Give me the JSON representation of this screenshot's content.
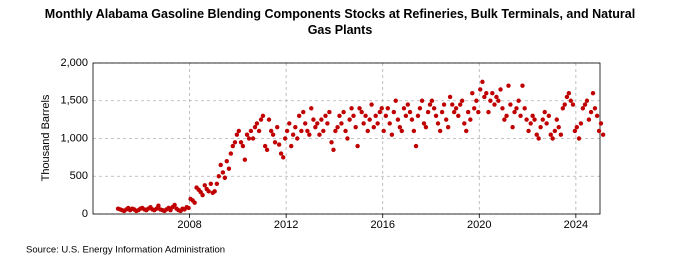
{
  "chart_data": {
    "type": "scatter",
    "title": "Monthly Alabama Gasoline Blending Components Stocks at Refineries, Bulk Terminals, and Natural Gas Plants",
    "y_label": "Thousand Barrels",
    "source": "Source: U.S. Energy Information Administration",
    "color": "#c00000",
    "grid": true,
    "xlim": [
      2004,
      2025
    ],
    "ylim": [
      0,
      2000
    ],
    "xticks": [
      2008,
      2012,
      2016,
      2020,
      2024
    ],
    "yticks": [
      0,
      500,
      {
        "value": 1000,
        "label": "1,000"
      },
      {
        "value": 1500,
        "label": "1,500"
      },
      {
        "value": 2000,
        "label": "2,000"
      }
    ],
    "x": [
      2005.04,
      2005.13,
      2005.21,
      2005.29,
      2005.38,
      2005.46,
      2005.54,
      2005.63,
      2005.71,
      2005.79,
      2005.88,
      2005.96,
      2006.04,
      2006.13,
      2006.21,
      2006.29,
      2006.38,
      2006.46,
      2006.54,
      2006.63,
      2006.71,
      2006.79,
      2006.88,
      2006.96,
      2007.04,
      2007.13,
      2007.21,
      2007.29,
      2007.38,
      2007.46,
      2007.54,
      2007.63,
      2007.71,
      2007.79,
      2007.88,
      2007.96,
      2008.04,
      2008.13,
      2008.21,
      2008.29,
      2008.38,
      2008.46,
      2008.54,
      2008.63,
      2008.71,
      2008.79,
      2008.88,
      2008.96,
      2009.04,
      2009.13,
      2009.21,
      2009.29,
      2009.38,
      2009.46,
      2009.54,
      2009.63,
      2009.71,
      2009.79,
      2009.88,
      2009.96,
      2010.04,
      2010.13,
      2010.21,
      2010.29,
      2010.38,
      2010.46,
      2010.54,
      2010.63,
      2010.71,
      2010.79,
      2010.88,
      2010.96,
      2011.04,
      2011.13,
      2011.21,
      2011.29,
      2011.38,
      2011.46,
      2011.54,
      2011.63,
      2011.71,
      2011.79,
      2011.88,
      2011.96,
      2012.04,
      2012.13,
      2012.21,
      2012.29,
      2012.38,
      2012.46,
      2012.54,
      2012.63,
      2012.71,
      2012.79,
      2012.88,
      2012.96,
      2013.04,
      2013.13,
      2013.21,
      2013.29,
      2013.38,
      2013.46,
      2013.54,
      2013.63,
      2013.71,
      2013.79,
      2013.88,
      2013.96,
      2014.04,
      2014.13,
      2014.21,
      2014.29,
      2014.38,
      2014.46,
      2014.54,
      2014.63,
      2014.71,
      2014.79,
      2014.88,
      2014.96,
      2015.04,
      2015.13,
      2015.21,
      2015.29,
      2015.38,
      2015.46,
      2015.54,
      2015.63,
      2015.71,
      2015.79,
      2015.88,
      2015.96,
      2016.04,
      2016.13,
      2016.21,
      2016.29,
      2016.38,
      2016.46,
      2016.54,
      2016.63,
      2016.71,
      2016.79,
      2016.88,
      2016.96,
      2017.04,
      2017.13,
      2017.21,
      2017.29,
      2017.38,
      2017.46,
      2017.54,
      2017.63,
      2017.71,
      2017.79,
      2017.88,
      2017.96,
      2018.04,
      2018.13,
      2018.21,
      2018.29,
      2018.38,
      2018.46,
      2018.54,
      2018.63,
      2018.71,
      2018.79,
      2018.88,
      2018.96,
      2019.04,
      2019.13,
      2019.21,
      2019.29,
      2019.38,
      2019.46,
      2019.54,
      2019.63,
      2019.71,
      2019.79,
      2019.88,
      2019.96,
      2020.04,
      2020.13,
      2020.21,
      2020.29,
      2020.38,
      2020.46,
      2020.54,
      2020.63,
      2020.71,
      2020.79,
      2020.88,
      2020.96,
      2021.04,
      2021.13,
      2021.21,
      2021.29,
      2021.38,
      2021.46,
      2021.54,
      2021.63,
      2021.71,
      2021.79,
      2021.88,
      2021.96,
      2022.04,
      2022.13,
      2022.21,
      2022.29,
      2022.38,
      2022.46,
      2022.54,
      2022.63,
      2022.71,
      2022.79,
      2022.88,
      2022.96,
      2023.04,
      2023.13,
      2023.21,
      2023.29,
      2023.38,
      2023.46,
      2023.54,
      2023.63,
      2023.71,
      2023.79,
      2023.88,
      2023.96,
      2024.04,
      2024.13,
      2024.21,
      2024.29,
      2024.38,
      2024.46,
      2024.54,
      2024.63,
      2024.71,
      2024.79,
      2024.88,
      2024.96,
      2025.04,
      2025.13
    ],
    "values": [
      70,
      60,
      50,
      40,
      60,
      80,
      50,
      70,
      60,
      40,
      50,
      70,
      80,
      60,
      50,
      70,
      90,
      60,
      50,
      70,
      110,
      60,
      50,
      40,
      60,
      80,
      50,
      90,
      120,
      70,
      50,
      40,
      70,
      60,
      90,
      80,
      200,
      180,
      150,
      350,
      320,
      290,
      250,
      380,
      330,
      300,
      400,
      280,
      300,
      400,
      500,
      650,
      550,
      480,
      700,
      600,
      800,
      900,
      950,
      1050,
      1100,
      950,
      900,
      720,
      1050,
      1000,
      1100,
      1000,
      1150,
      1200,
      1100,
      1250,
      1300,
      900,
      850,
      1250,
      1100,
      1050,
      950,
      1150,
      920,
      800,
      750,
      1000,
      1100,
      1200,
      900,
      1050,
      1150,
      1000,
      1300,
      1100,
      1350,
      1200,
      1100,
      1050,
      1400,
      1250,
      1150,
      1200,
      1050,
      1250,
      1100,
      1300,
      1200,
      1350,
      950,
      850,
      1100,
      1150,
      1300,
      1200,
      1350,
      1100,
      1000,
      1250,
      1400,
      1300,
      1150,
      900,
      1400,
      1350,
      1200,
      1300,
      1100,
      1250,
      1450,
      1150,
      1300,
      1200,
      1350,
      1400,
      1100,
      1300,
      1400,
      1200,
      1050,
      1350,
      1500,
      1250,
      1150,
      1100,
      1400,
      1300,
      1450,
      1350,
      1250,
      1100,
      900,
      1300,
      1400,
      1500,
      1200,
      1150,
      1350,
      1450,
      1500,
      1400,
      1300,
      1200,
      1100,
      1350,
      1450,
      1250,
      1150,
      1550,
      1450,
      1350,
      1400,
      1300,
      1450,
      1500,
      1200,
      1100,
      1350,
      1250,
      1600,
      1400,
      1500,
      1350,
      1650,
      1750,
      1550,
      1600,
      1350,
      1500,
      1600,
      1450,
      1550,
      1500,
      1650,
      1400,
      1250,
      1300,
      1700,
      1450,
      1150,
      1350,
      1400,
      1500,
      1300,
      1700,
      1400,
      1250,
      1100,
      1200,
      1300,
      1250,
      1050,
      1000,
      1150,
      1250,
      1350,
      1200,
      1300,
      1050,
      1000,
      1100,
      1250,
      1150,
      1050,
      1400,
      1450,
      1550,
      1600,
      1500,
      1450,
      1100,
      1150,
      1000,
      1200,
      1400,
      1450,
      1500,
      1250,
      1350,
      1600,
      1400,
      1300,
      1100,
      1200,
      1050
    ]
  }
}
